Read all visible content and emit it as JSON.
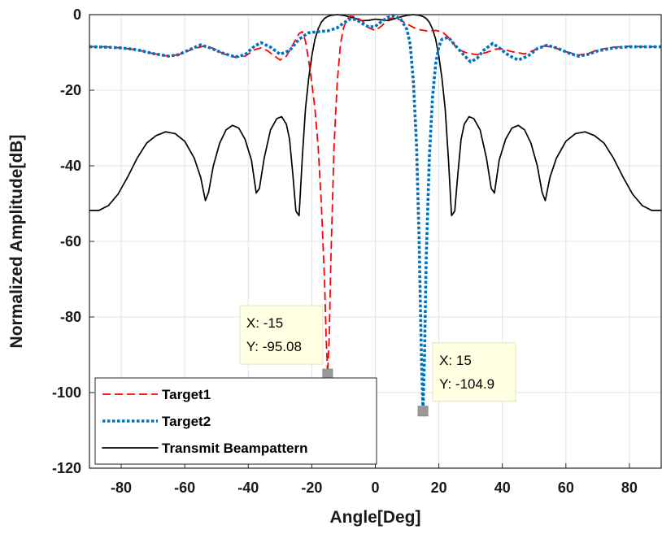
{
  "chart_data": {
    "type": "line",
    "xlabel": "Angle[Deg]",
    "ylabel": "Normalized Amplitude[dB]",
    "xlim": [
      -90,
      90
    ],
    "ylim": [
      -120,
      0
    ],
    "xticks": [
      -80,
      -60,
      -40,
      -20,
      0,
      20,
      40,
      60,
      80
    ],
    "yticks": [
      0,
      -20,
      -40,
      -60,
      -80,
      -100,
      -120
    ],
    "grid": true,
    "legend_position": "bottom-left",
    "series": [
      {
        "name": "Target1",
        "color": "#ff0000",
        "style": "dashed",
        "points": [
          [
            -90,
            -8.5
          ],
          [
            -85,
            -8.5
          ],
          [
            -80,
            -8.8
          ],
          [
            -75,
            -9.3
          ],
          [
            -70,
            -10.3
          ],
          [
            -65,
            -11
          ],
          [
            -62,
            -10.6
          ],
          [
            -58,
            -9.3
          ],
          [
            -54,
            -8.3
          ],
          [
            -51,
            -8.9
          ],
          [
            -48,
            -10.3
          ],
          [
            -44,
            -11.3
          ],
          [
            -41,
            -11
          ],
          [
            -38,
            -9.3
          ],
          [
            -36,
            -8.8
          ],
          [
            -34,
            -9.5
          ],
          [
            -32,
            -10.8
          ],
          [
            -30,
            -12
          ],
          [
            -28,
            -11
          ],
          [
            -26,
            -8
          ],
          [
            -24,
            -5
          ],
          [
            -23,
            -4.5
          ],
          [
            -22,
            -7
          ],
          [
            -21,
            -12
          ],
          [
            -20,
            -18
          ],
          [
            -19,
            -25
          ],
          [
            -18,
            -35
          ],
          [
            -17,
            -50
          ],
          [
            -16,
            -70
          ],
          [
            -15.5,
            -85
          ],
          [
            -15,
            -95.08
          ],
          [
            -14.5,
            -85
          ],
          [
            -14,
            -65
          ],
          [
            -13,
            -35
          ],
          [
            -12,
            -18
          ],
          [
            -11,
            -8
          ],
          [
            -10,
            -3.5
          ],
          [
            -9,
            -1.3
          ],
          [
            -8,
            -0.4
          ],
          [
            -6,
            -0.6
          ],
          [
            -4,
            -1.8
          ],
          [
            -2,
            -3.5
          ],
          [
            0,
            -4.2
          ],
          [
            2,
            -3
          ],
          [
            4,
            -1.3
          ],
          [
            6,
            -0.6
          ],
          [
            8,
            -1.5
          ],
          [
            10,
            -2.5
          ],
          [
            13,
            -3.8
          ],
          [
            16,
            -4.3
          ],
          [
            19,
            -4.2
          ],
          [
            21,
            -4.5
          ],
          [
            23,
            -6
          ],
          [
            26,
            -9.2
          ],
          [
            29,
            -10.2
          ],
          [
            32,
            -10.6
          ],
          [
            35,
            -10
          ],
          [
            38,
            -9.1
          ],
          [
            40,
            -9.1
          ],
          [
            43,
            -9.8
          ],
          [
            47,
            -10.4
          ],
          [
            50,
            -9.4
          ],
          [
            53,
            -8.3
          ],
          [
            56,
            -8.6
          ],
          [
            60,
            -9.8
          ],
          [
            64,
            -10.7
          ],
          [
            67,
            -10.3
          ],
          [
            70,
            -9.3
          ],
          [
            75,
            -8.6
          ],
          [
            80,
            -8.4
          ],
          [
            85,
            -8.5
          ],
          [
            90,
            -8.5
          ]
        ]
      },
      {
        "name": "Target2",
        "color": "#0072bd",
        "style": "dotted",
        "points": [
          [
            -90,
            -8.5
          ],
          [
            -85,
            -8.6
          ],
          [
            -80,
            -8.8
          ],
          [
            -75,
            -9.3
          ],
          [
            -70,
            -10.3
          ],
          [
            -65,
            -11
          ],
          [
            -62,
            -10.6
          ],
          [
            -58,
            -9.1
          ],
          [
            -55,
            -8
          ],
          [
            -52,
            -8.8
          ],
          [
            -48,
            -10.2
          ],
          [
            -44,
            -11.2
          ],
          [
            -41,
            -10.6
          ],
          [
            -38,
            -8.3
          ],
          [
            -36,
            -7.4
          ],
          [
            -33,
            -8.6
          ],
          [
            -30,
            -10.5
          ],
          [
            -27,
            -9.5
          ],
          [
            -24,
            -6.5
          ],
          [
            -21,
            -4.8
          ],
          [
            -18,
            -4.5
          ],
          [
            -15,
            -4.3
          ],
          [
            -12,
            -3.5
          ],
          [
            -10,
            -2.2
          ],
          [
            -8,
            -1.2
          ],
          [
            -6,
            -1.3
          ],
          [
            -4,
            -2.4
          ],
          [
            -2,
            -3.3
          ],
          [
            0,
            -3.1
          ],
          [
            2,
            -1.8
          ],
          [
            4,
            -0.7
          ],
          [
            6,
            -0.3
          ],
          [
            8,
            -1.2
          ],
          [
            10,
            -4
          ],
          [
            11,
            -8
          ],
          [
            12,
            -18
          ],
          [
            13,
            -35
          ],
          [
            13.8,
            -60
          ],
          [
            14.5,
            -90
          ],
          [
            15,
            -104.9
          ],
          [
            15.5,
            -90
          ],
          [
            16,
            -65
          ],
          [
            17,
            -38
          ],
          [
            18,
            -22
          ],
          [
            19,
            -13
          ],
          [
            20,
            -8.5
          ],
          [
            21,
            -6.5
          ],
          [
            23,
            -6
          ],
          [
            25,
            -8
          ],
          [
            28,
            -10.8
          ],
          [
            30,
            -12.5
          ],
          [
            32,
            -11.6
          ],
          [
            34,
            -9.5
          ],
          [
            37,
            -7.6
          ],
          [
            39,
            -8.8
          ],
          [
            42,
            -10.8
          ],
          [
            45,
            -12
          ],
          [
            48,
            -11
          ],
          [
            51,
            -9
          ],
          [
            54,
            -8.1
          ],
          [
            57,
            -8.8
          ],
          [
            61,
            -10.2
          ],
          [
            64,
            -11
          ],
          [
            67,
            -10.5
          ],
          [
            70,
            -9.6
          ],
          [
            75,
            -8.8
          ],
          [
            80,
            -8.5
          ],
          [
            85,
            -8.5
          ],
          [
            90,
            -8.5
          ]
        ]
      },
      {
        "name": "Transmit Beampattern",
        "color": "#000000",
        "style": "solid",
        "points": [
          [
            -90,
            -51.8
          ],
          [
            -87,
            -51.8
          ],
          [
            -84,
            -50.5
          ],
          [
            -81,
            -47.5
          ],
          [
            -78,
            -43
          ],
          [
            -75,
            -38
          ],
          [
            -72,
            -34
          ],
          [
            -69,
            -32
          ],
          [
            -66,
            -31
          ],
          [
            -63,
            -31.5
          ],
          [
            -60,
            -33.5
          ],
          [
            -57,
            -38
          ],
          [
            -55,
            -43
          ],
          [
            -53.5,
            -49.2
          ],
          [
            -52.5,
            -47
          ],
          [
            -51,
            -40
          ],
          [
            -49,
            -34
          ],
          [
            -47,
            -30.5
          ],
          [
            -45,
            -29.3
          ],
          [
            -43,
            -30
          ],
          [
            -41,
            -33
          ],
          [
            -39,
            -38.5
          ],
          [
            -37.5,
            -47.2
          ],
          [
            -36.5,
            -46
          ],
          [
            -35,
            -38
          ],
          [
            -33,
            -30.5
          ],
          [
            -31,
            -27.5
          ],
          [
            -29.5,
            -27
          ],
          [
            -28,
            -29
          ],
          [
            -27,
            -33
          ],
          [
            -26,
            -42
          ],
          [
            -25,
            -52
          ],
          [
            -24,
            -53.2
          ],
          [
            -23,
            -38
          ],
          [
            -22,
            -25
          ],
          [
            -21,
            -17
          ],
          [
            -20,
            -11
          ],
          [
            -19,
            -6.5
          ],
          [
            -18,
            -3.8
          ],
          [
            -17,
            -2
          ],
          [
            -16,
            -1
          ],
          [
            -15,
            -0.5
          ],
          [
            -14,
            -0.2
          ],
          [
            -12,
            0
          ],
          [
            -10,
            -0.2
          ],
          [
            -8,
            -0.6
          ],
          [
            -6,
            -1.1
          ],
          [
            -4,
            -1.6
          ],
          [
            -2,
            -1.5
          ],
          [
            0,
            -1.2
          ],
          [
            2,
            -1.4
          ],
          [
            4,
            -1.6
          ],
          [
            6,
            -1.1
          ],
          [
            8,
            -0.6
          ],
          [
            10,
            -0.2
          ],
          [
            12,
            0
          ],
          [
            14,
            -0.2
          ],
          [
            15,
            -0.5
          ],
          [
            16,
            -1
          ],
          [
            17,
            -2
          ],
          [
            18,
            -3.8
          ],
          [
            19,
            -6.5
          ],
          [
            20,
            -11
          ],
          [
            21,
            -17
          ],
          [
            22,
            -25
          ],
          [
            23,
            -38
          ],
          [
            24,
            -53.2
          ],
          [
            25,
            -52
          ],
          [
            26,
            -42
          ],
          [
            27,
            -33
          ],
          [
            28,
            -29
          ],
          [
            29.5,
            -27
          ],
          [
            31,
            -27.5
          ],
          [
            33,
            -30.5
          ],
          [
            35,
            -38
          ],
          [
            36.5,
            -46
          ],
          [
            37.5,
            -47.2
          ],
          [
            39,
            -38.5
          ],
          [
            41,
            -33
          ],
          [
            43,
            -30
          ],
          [
            45,
            -29.3
          ],
          [
            47,
            -30.5
          ],
          [
            49,
            -34
          ],
          [
            51,
            -40
          ],
          [
            52.5,
            -47
          ],
          [
            53.5,
            -49.2
          ],
          [
            55,
            -43
          ],
          [
            57,
            -38
          ],
          [
            60,
            -33.5
          ],
          [
            63,
            -31.5
          ],
          [
            66,
            -31
          ],
          [
            69,
            -32
          ],
          [
            72,
            -34
          ],
          [
            75,
            -38
          ],
          [
            78,
            -43
          ],
          [
            81,
            -47.5
          ],
          [
            84,
            -50.5
          ],
          [
            87,
            -51.8
          ],
          [
            90,
            -51.8
          ]
        ]
      }
    ],
    "annotations": [
      {
        "series": "Target1",
        "x": -15,
        "y": -95.08,
        "text_x": "X: -15",
        "text_y": "Y: -95.08"
      },
      {
        "series": "Target2",
        "x": 15,
        "y": -104.9,
        "text_x": "X: 15",
        "text_y": "Y: -104.9"
      }
    ]
  }
}
